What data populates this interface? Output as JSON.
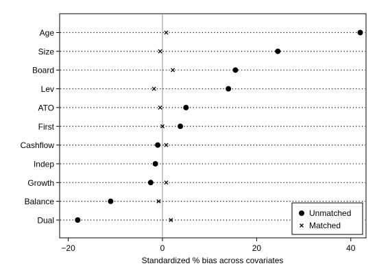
{
  "chart_data": {
    "type": "scatter",
    "title": "",
    "xlabel": "Standardized % bias across covariates",
    "ylabel": "",
    "xlim": [
      -22,
      45
    ],
    "xticks": [
      -20,
      0,
      20,
      40
    ],
    "reference_line_x": 0,
    "categories": [
      "Age",
      "Size",
      "Board",
      "Lev",
      "ATO",
      "First",
      "Cashflow",
      "Indep",
      "Growth",
      "Balance",
      "Dual"
    ],
    "series": [
      {
        "name": "Unmatched",
        "marker": "filled-circle",
        "values": [
          42,
          24.5,
          15.5,
          14,
          5,
          3.8,
          -1,
          -1.5,
          -2.5,
          -11,
          -18
        ]
      },
      {
        "name": "Matched",
        "marker": "x",
        "values": [
          0.8,
          -0.5,
          2.2,
          -1.8,
          -0.5,
          0,
          0.8,
          -1.5,
          0.8,
          -0.8,
          1.8
        ]
      }
    ],
    "legend_position": "bottom-right",
    "grid": "dotted horizontal lines per category"
  }
}
